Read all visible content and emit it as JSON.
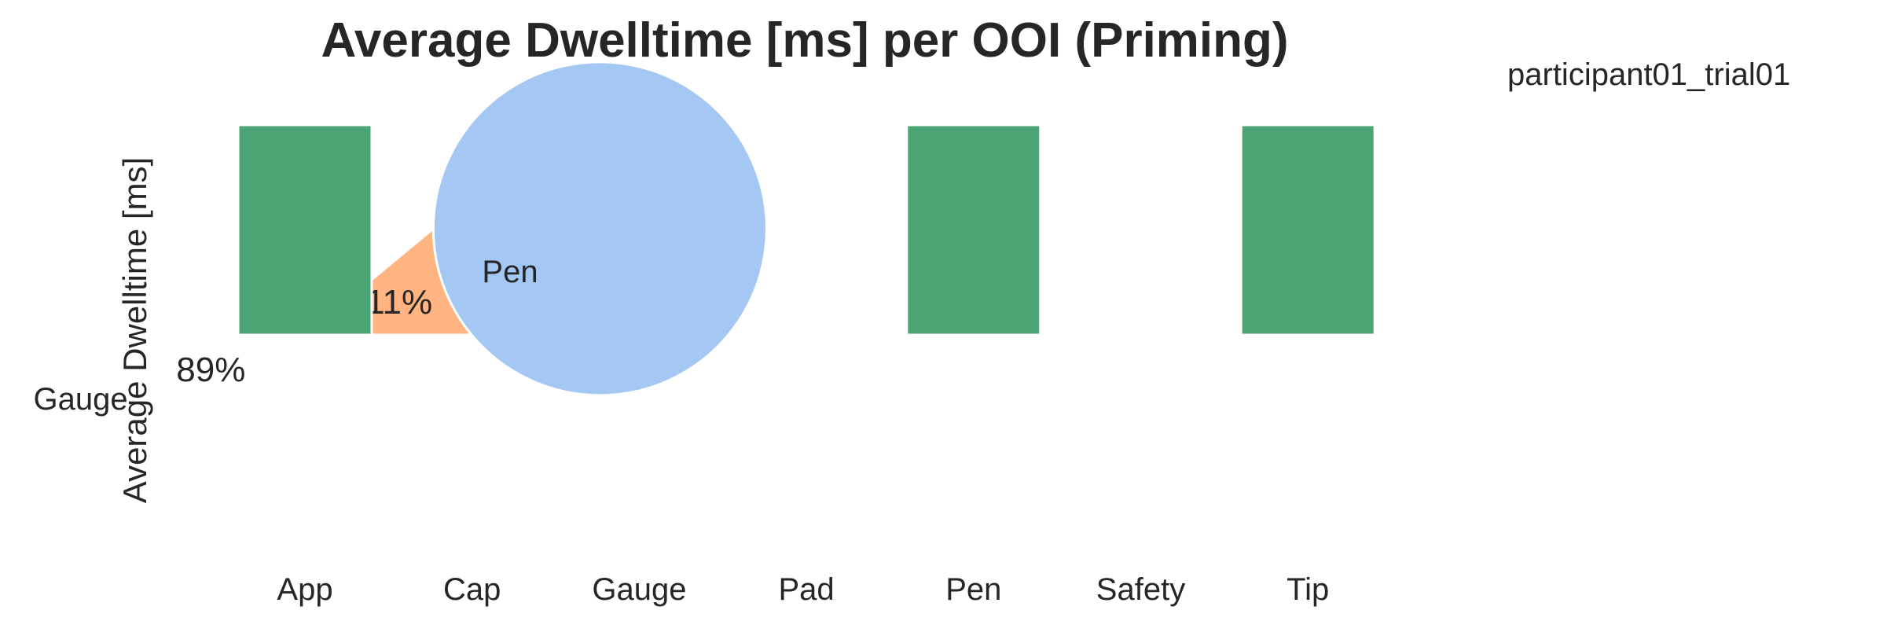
{
  "title": "Average Dwelltime [ms] per OOI (Priming)",
  "participant_label": "participant01_trial01",
  "colors": {
    "bar": "#4ba474",
    "text": "#262626",
    "background": "#ffffff"
  },
  "chart_data": [
    {
      "type": "pie",
      "labels": [
        "Gauge",
        "Pen"
      ],
      "values": [
        89,
        11
      ],
      "percent_labels": [
        "89%",
        "11%"
      ],
      "colors": [
        "#a4c8f3",
        "#ffb482"
      ]
    },
    {
      "type": "bar",
      "categories": [
        "App",
        "Cap",
        "Gauge",
        "Pad",
        "Pen",
        "Safety",
        "Tip"
      ],
      "values": [
        1,
        0,
        0,
        0,
        1,
        0,
        1
      ],
      "ylabel": "Average Dwelltime [ms]",
      "grid": false
    }
  ]
}
